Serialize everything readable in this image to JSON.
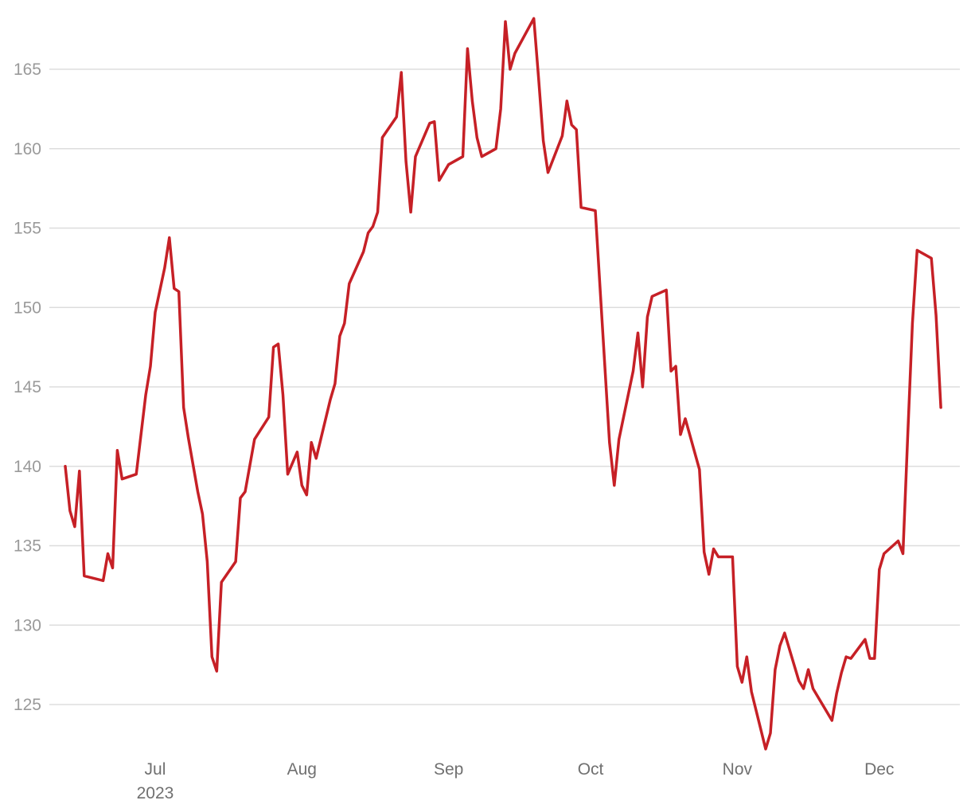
{
  "chart_data": {
    "type": "line",
    "title": "",
    "xlabel": "",
    "ylabel": "",
    "x_range": [
      "2023-06-12",
      "2023-12-15"
    ],
    "ylim": [
      122,
      168.5
    ],
    "y_ticks": [
      125,
      130,
      135,
      140,
      145,
      150,
      155,
      160,
      165
    ],
    "x_ticks": [
      {
        "date": "2023-07-01",
        "label": "Jul",
        "sublabel": "2023"
      },
      {
        "date": "2023-08-01",
        "label": "Aug",
        "sublabel": ""
      },
      {
        "date": "2023-09-01",
        "label": "Sep",
        "sublabel": ""
      },
      {
        "date": "2023-10-01",
        "label": "Oct",
        "sublabel": ""
      },
      {
        "date": "2023-11-01",
        "label": "Nov",
        "sublabel": ""
      },
      {
        "date": "2023-12-01",
        "label": "Dec",
        "sublabel": ""
      }
    ],
    "grid": "horizontal",
    "legend": "none",
    "series": [
      {
        "color": "#c62026",
        "points": [
          [
            "2023-06-12",
            140.0
          ],
          [
            "2023-06-13",
            137.2
          ],
          [
            "2023-06-14",
            136.2
          ],
          [
            "2023-06-15",
            139.7
          ],
          [
            "2023-06-16",
            133.1
          ],
          [
            "2023-06-20",
            132.8
          ],
          [
            "2023-06-21",
            134.5
          ],
          [
            "2023-06-22",
            133.6
          ],
          [
            "2023-06-23",
            141.0
          ],
          [
            "2023-06-24",
            139.2
          ],
          [
            "2023-06-27",
            139.5
          ],
          [
            "2023-06-29",
            144.5
          ],
          [
            "2023-06-30",
            146.3
          ],
          [
            "2023-07-01",
            149.7
          ],
          [
            "2023-07-03",
            152.5
          ],
          [
            "2023-07-04",
            154.4
          ],
          [
            "2023-07-05",
            151.2
          ],
          [
            "2023-07-06",
            151.0
          ],
          [
            "2023-07-07",
            143.7
          ],
          [
            "2023-07-08",
            141.8
          ],
          [
            "2023-07-10",
            138.4
          ],
          [
            "2023-07-11",
            137.0
          ],
          [
            "2023-07-12",
            134.0
          ],
          [
            "2023-07-13",
            128.0
          ],
          [
            "2023-07-14",
            127.1
          ],
          [
            "2023-07-15",
            132.7
          ],
          [
            "2023-07-18",
            134.0
          ],
          [
            "2023-07-19",
            138.0
          ],
          [
            "2023-07-20",
            138.4
          ],
          [
            "2023-07-22",
            141.7
          ],
          [
            "2023-07-25",
            143.1
          ],
          [
            "2023-07-26",
            147.5
          ],
          [
            "2023-07-27",
            147.7
          ],
          [
            "2023-07-28",
            144.5
          ],
          [
            "2023-07-29",
            139.5
          ],
          [
            "2023-07-31",
            140.9
          ],
          [
            "2023-08-01",
            138.8
          ],
          [
            "2023-08-02",
            138.2
          ],
          [
            "2023-08-03",
            141.5
          ],
          [
            "2023-08-04",
            140.5
          ],
          [
            "2023-08-07",
            144.2
          ],
          [
            "2023-08-08",
            145.2
          ],
          [
            "2023-08-09",
            148.2
          ],
          [
            "2023-08-10",
            149.0
          ],
          [
            "2023-08-11",
            151.5
          ],
          [
            "2023-08-14",
            153.5
          ],
          [
            "2023-08-15",
            154.7
          ],
          [
            "2023-08-16",
            155.1
          ],
          [
            "2023-08-17",
            156.0
          ],
          [
            "2023-08-18",
            160.7
          ],
          [
            "2023-08-21",
            162.0
          ],
          [
            "2023-08-22",
            164.8
          ],
          [
            "2023-08-23",
            159.2
          ],
          [
            "2023-08-24",
            156.0
          ],
          [
            "2023-08-25",
            159.5
          ],
          [
            "2023-08-28",
            161.6
          ],
          [
            "2023-08-29",
            161.7
          ],
          [
            "2023-08-30",
            158.0
          ],
          [
            "2023-09-01",
            159.0
          ],
          [
            "2023-09-04",
            159.5
          ],
          [
            "2023-09-05",
            166.3
          ],
          [
            "2023-09-06",
            163.0
          ],
          [
            "2023-09-07",
            160.7
          ],
          [
            "2023-09-08",
            159.5
          ],
          [
            "2023-09-11",
            160.0
          ],
          [
            "2023-09-12",
            162.5
          ],
          [
            "2023-09-13",
            168.0
          ],
          [
            "2023-09-14",
            165.0
          ],
          [
            "2023-09-15",
            166.0
          ],
          [
            "2023-09-19",
            168.2
          ],
          [
            "2023-09-20",
            164.5
          ],
          [
            "2023-09-21",
            160.5
          ],
          [
            "2023-09-22",
            158.5
          ],
          [
            "2023-09-25",
            160.8
          ],
          [
            "2023-09-26",
            163.0
          ],
          [
            "2023-09-27",
            161.5
          ],
          [
            "2023-09-28",
            161.2
          ],
          [
            "2023-09-29",
            156.3
          ],
          [
            "2023-10-02",
            156.1
          ],
          [
            "2023-10-05",
            141.5
          ],
          [
            "2023-10-06",
            138.8
          ],
          [
            "2023-10-07",
            141.7
          ],
          [
            "2023-10-10",
            146.0
          ],
          [
            "2023-10-11",
            148.4
          ],
          [
            "2023-10-12",
            145.0
          ],
          [
            "2023-10-13",
            149.4
          ],
          [
            "2023-10-14",
            150.7
          ],
          [
            "2023-10-17",
            151.1
          ],
          [
            "2023-10-18",
            146.0
          ],
          [
            "2023-10-19",
            146.3
          ],
          [
            "2023-10-20",
            142.0
          ],
          [
            "2023-10-21",
            143.0
          ],
          [
            "2023-10-24",
            139.8
          ],
          [
            "2023-10-25",
            134.6
          ],
          [
            "2023-10-26",
            133.2
          ],
          [
            "2023-10-27",
            134.8
          ],
          [
            "2023-10-28",
            134.3
          ],
          [
            "2023-10-31",
            134.3
          ],
          [
            "2023-11-01",
            127.4
          ],
          [
            "2023-11-02",
            126.4
          ],
          [
            "2023-11-03",
            128.0
          ],
          [
            "2023-11-04",
            125.8
          ],
          [
            "2023-11-07",
            122.2
          ],
          [
            "2023-11-08",
            123.2
          ],
          [
            "2023-11-09",
            127.2
          ],
          [
            "2023-11-10",
            128.7
          ],
          [
            "2023-11-11",
            129.5
          ],
          [
            "2023-11-14",
            126.5
          ],
          [
            "2023-11-15",
            126.0
          ],
          [
            "2023-11-16",
            127.2
          ],
          [
            "2023-11-17",
            126.0
          ],
          [
            "2023-11-21",
            124.0
          ],
          [
            "2023-11-22",
            125.7
          ],
          [
            "2023-11-23",
            127.0
          ],
          [
            "2023-11-24",
            128.0
          ],
          [
            "2023-11-25",
            127.9
          ],
          [
            "2023-11-28",
            129.1
          ],
          [
            "2023-11-29",
            127.9
          ],
          [
            "2023-11-30",
            127.9
          ],
          [
            "2023-12-01",
            133.5
          ],
          [
            "2023-12-02",
            134.5
          ],
          [
            "2023-12-05",
            135.3
          ],
          [
            "2023-12-06",
            134.5
          ],
          [
            "2023-12-07",
            141.8
          ],
          [
            "2023-12-08",
            149.0
          ],
          [
            "2023-12-09",
            153.6
          ],
          [
            "2023-12-12",
            153.1
          ],
          [
            "2023-12-13",
            149.5
          ],
          [
            "2023-12-14",
            143.7
          ]
        ]
      }
    ]
  }
}
